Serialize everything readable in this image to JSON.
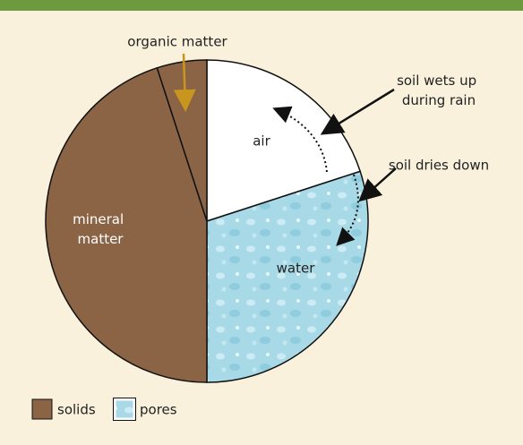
{
  "chart_data": {
    "type": "pie",
    "categories": [
      "air",
      "water",
      "mineral matter",
      "organic matter"
    ],
    "values": [
      20,
      30,
      45,
      5
    ],
    "colors": [
      "#ffffff",
      "#a8d9e6",
      "#8b6446",
      "#8b6446"
    ],
    "annotations": [
      "soil wets up during rain",
      "soil dries down"
    ],
    "legend": [
      {
        "label": "solids",
        "color": "#8b6446"
      },
      {
        "label": "pores",
        "color": "#a8d9e6"
      }
    ]
  }
}
